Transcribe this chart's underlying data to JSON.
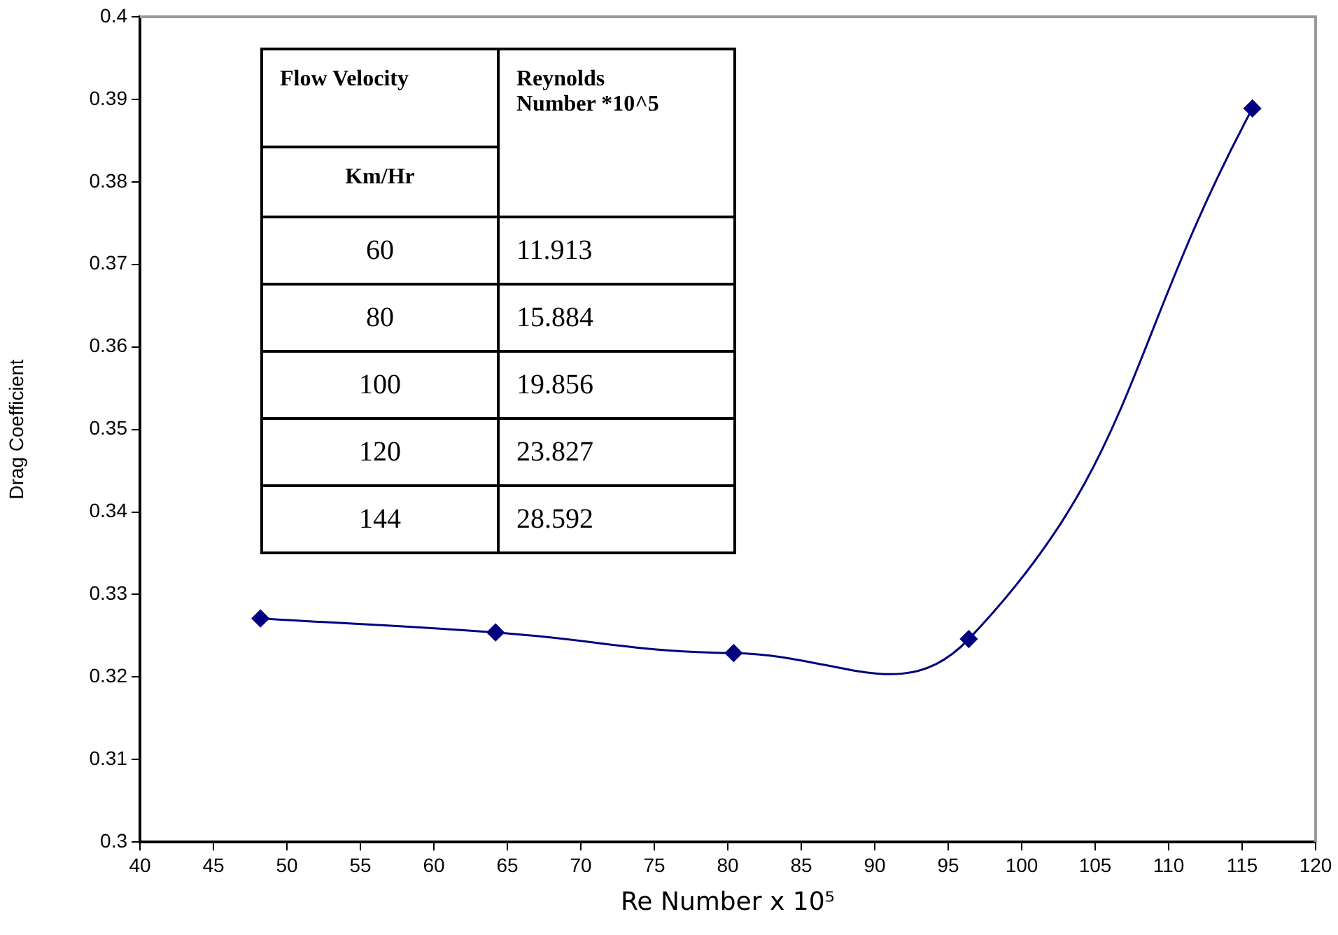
{
  "chart_data": {
    "type": "line",
    "xlabel": "Re Number x 10⁵",
    "ylabel": "Drag Coefficient",
    "x": [
      48.2,
      64.2,
      80.4,
      96.4,
      115.7
    ],
    "series": [
      {
        "color": "#000080",
        "values": [
          0.3271,
          0.3254,
          0.3229,
          0.3246,
          0.3889
        ]
      }
    ],
    "xlim": [
      40,
      120
    ],
    "xticks": [
      40,
      45,
      50,
      55,
      60,
      65,
      70,
      75,
      80,
      85,
      90,
      95,
      100,
      105,
      110,
      115,
      120
    ],
    "ylim": [
      0.3,
      0.4
    ],
    "yticks": [
      0.3,
      0.31,
      0.32,
      0.33,
      0.34,
      0.35,
      0.36,
      0.37,
      0.38,
      0.39,
      0.4
    ],
    "marker": "diamond",
    "grid": false,
    "legend": false,
    "annotations": [
      "Flow Velocity",
      "Km/Hr",
      "Reynolds Number *10^5",
      "60",
      "11.913",
      "80",
      "15.884",
      "100",
      "19.856",
      "120",
      "23.827",
      "144",
      "28.592"
    ]
  }
}
